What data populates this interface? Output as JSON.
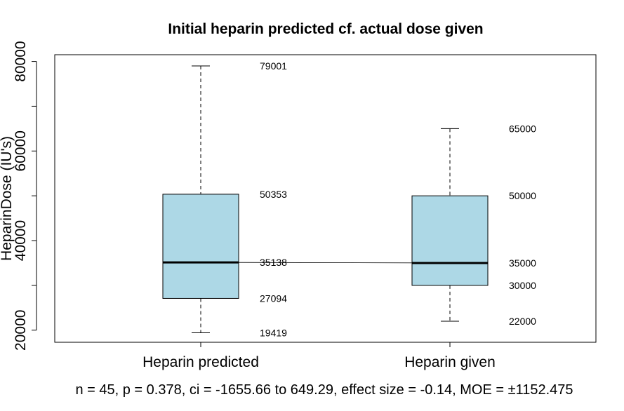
{
  "chart_data": {
    "type": "boxplot",
    "title": "Initial heparin predicted cf. actual dose given",
    "ylabel": "HeparinDose (IU's)",
    "xlabel": "",
    "ylim": [
      17300,
      81500
    ],
    "yticks": [
      20000,
      40000,
      60000,
      80000
    ],
    "yminor_ticks": [
      30000,
      50000,
      70000
    ],
    "grid": false,
    "box_color": "#add8e6",
    "categories": [
      "Heparin predicted",
      "Heparin given"
    ],
    "boxes": [
      {
        "category": "Heparin predicted",
        "min": 19419,
        "q1": 27094,
        "median": 35138,
        "q3": 50353,
        "max": 79001,
        "labels": [
          "79001",
          "50353",
          "35138",
          "27094",
          "19419"
        ]
      },
      {
        "category": "Heparin given",
        "min": 22000,
        "q1": 30000,
        "median": 35000,
        "q3": 50000,
        "max": 65000,
        "labels": [
          "65000",
          "50000",
          "35000",
          "30000",
          "22000"
        ]
      }
    ],
    "median_connector": true,
    "footnote": "n = 45, p = 0.378, ci = -1655.66 to 649.29, effect size = -0.14, MOE = ±1152.475"
  }
}
